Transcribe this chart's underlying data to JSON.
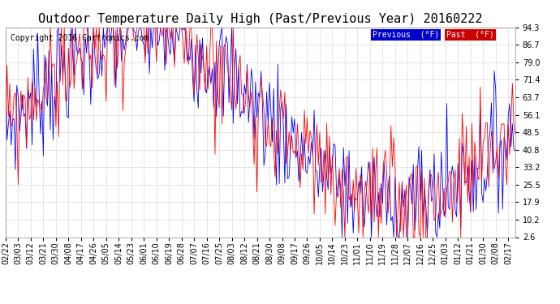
{
  "title": "Outdoor Temperature Daily High (Past/Previous Year) 20160222",
  "copyright": "Copyright 2016 Cartronics.com",
  "yticks": [
    94.3,
    86.7,
    79.0,
    71.4,
    63.7,
    56.1,
    48.5,
    40.8,
    33.2,
    25.5,
    17.9,
    10.2,
    2.6
  ],
  "ylim": [
    2.6,
    94.3
  ],
  "bg_color": "#ffffff",
  "plot_bg_color": "#ffffff",
  "grid_color": "#cccccc",
  "previous_color": "#0000ff",
  "past_color": "#ff0000",
  "legend_previous_bg": "#0000cc",
  "legend_past_bg": "#cc0000",
  "title_fontsize": 11,
  "copyright_fontsize": 7,
  "tick_fontsize": 7,
  "label_dates": [
    "02/22",
    "03/03",
    "03/12",
    "03/21",
    "03/30",
    "04/08",
    "04/17",
    "04/26",
    "05/05",
    "05/14",
    "05/23",
    "06/01",
    "06/10",
    "06/19",
    "06/28",
    "07/07",
    "07/16",
    "07/25",
    "08/03",
    "08/12",
    "08/21",
    "08/30",
    "09/08",
    "09/17",
    "09/26",
    "10/05",
    "10/14",
    "10/23",
    "11/01",
    "11/10",
    "11/19",
    "11/28",
    "12/07",
    "12/16",
    "12/25",
    "01/03",
    "01/12",
    "01/21",
    "01/30",
    "02/08",
    "02/17"
  ]
}
